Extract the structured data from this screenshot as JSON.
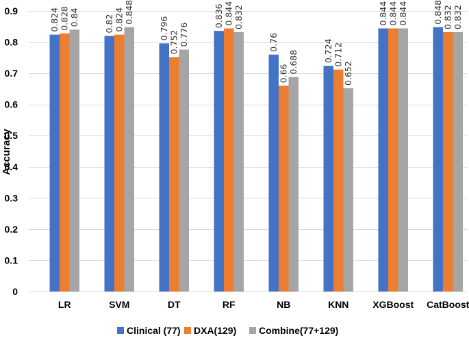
{
  "chart_data": {
    "type": "bar",
    "title": "",
    "xlabel": "",
    "ylabel": "Accuracy",
    "ylim": [
      0,
      0.9
    ],
    "yticks": [
      "0",
      "0.1",
      "0.2",
      "0.3",
      "0.4",
      "0.5",
      "0.6",
      "0.7",
      "0.8",
      "0.9"
    ],
    "grid": true,
    "legend_position": "bottom",
    "categories": [
      "LR",
      "SVM",
      "DT",
      "RF",
      "NB",
      "KNN",
      "XGBoost",
      "CatBoost"
    ],
    "series": [
      {
        "name": "Clinical (77)",
        "color": "#4472C4",
        "values": [
          0.824,
          0.82,
          0.796,
          0.836,
          0.76,
          0.724,
          0.844,
          0.848
        ],
        "labels": [
          "0.824",
          "0.82",
          "0.796",
          "0.836",
          "0.76",
          "0.724",
          "0.844",
          "0.848"
        ]
      },
      {
        "name": "DXA(129)",
        "color": "#ED7D31",
        "values": [
          0.828,
          0.824,
          0.752,
          0.844,
          0.66,
          0.712,
          0.844,
          0.832
        ],
        "labels": [
          "0.828",
          "0.824",
          "0.752",
          "0.844",
          "0.66",
          "0.712",
          "0.844",
          "0.832"
        ]
      },
      {
        "name": "Combine(77+129)",
        "color": "#A5A5A5",
        "values": [
          0.84,
          0.848,
          0.776,
          0.832,
          0.688,
          0.652,
          0.844,
          0.832
        ],
        "labels": [
          "0.84",
          "0.848",
          "0.776",
          "0.832",
          "0.688",
          "0.652",
          "0.844",
          "0.832"
        ]
      }
    ]
  }
}
